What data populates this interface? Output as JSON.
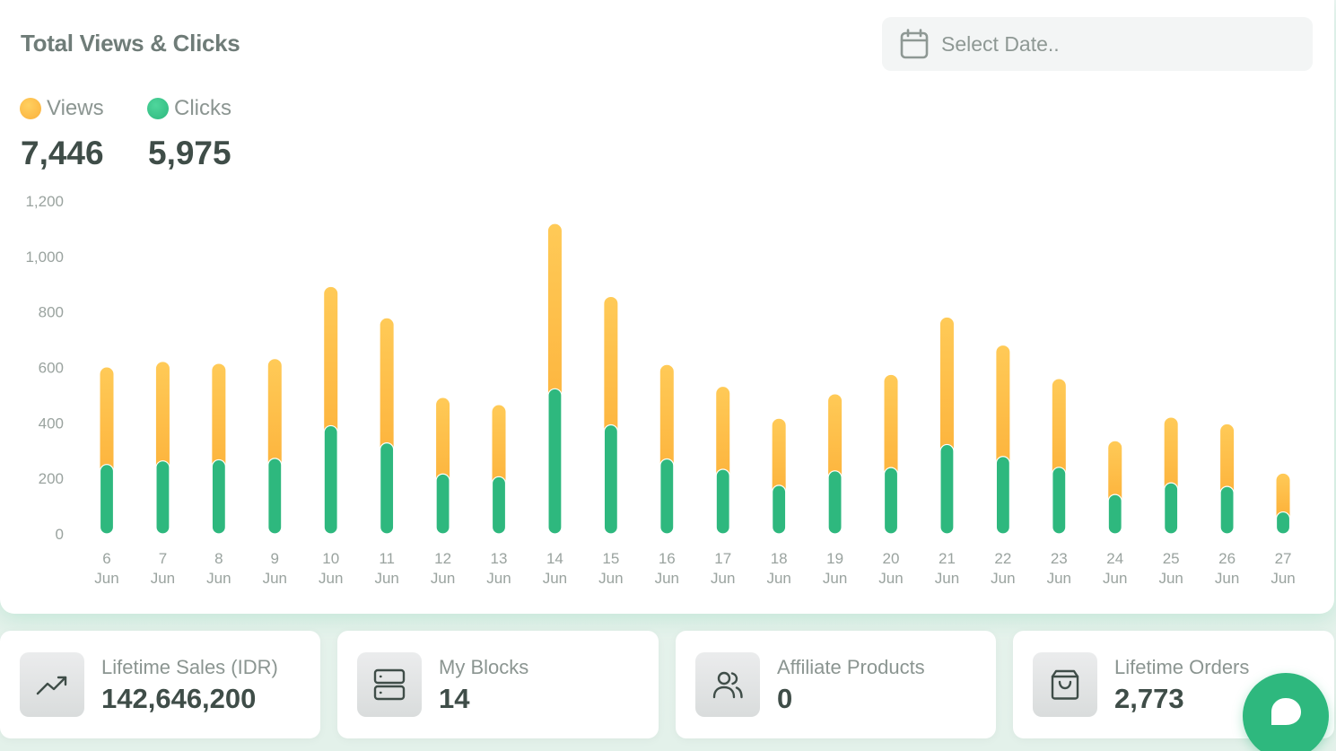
{
  "header": {
    "title": "Total Views & Clicks",
    "date_placeholder": "Select Date.."
  },
  "legend": {
    "views": {
      "label": "Views",
      "total": "7,446",
      "color": "#fbb03b"
    },
    "clicks": {
      "label": "Clicks",
      "total": "5,975",
      "color": "#2eb87e"
    }
  },
  "chart_data": {
    "type": "bar",
    "stacked": true,
    "categories": [
      [
        "6",
        "Jun"
      ],
      [
        "7",
        "Jun"
      ],
      [
        "8",
        "Jun"
      ],
      [
        "9",
        "Jun"
      ],
      [
        "10",
        "Jun"
      ],
      [
        "11",
        "Jun"
      ],
      [
        "12",
        "Jun"
      ],
      [
        "13",
        "Jun"
      ],
      [
        "14",
        "Jun"
      ],
      [
        "15",
        "Jun"
      ],
      [
        "16",
        "Jun"
      ],
      [
        "17",
        "Jun"
      ],
      [
        "18",
        "Jun"
      ],
      [
        "19",
        "Jun"
      ],
      [
        "20",
        "Jun"
      ],
      [
        "21",
        "Jun"
      ],
      [
        "22",
        "Jun"
      ],
      [
        "23",
        "Jun"
      ],
      [
        "24",
        "Jun"
      ],
      [
        "25",
        "Jun"
      ],
      [
        "26",
        "Jun"
      ],
      [
        "27",
        "Jun"
      ]
    ],
    "series": [
      {
        "name": "Clicks",
        "color": "#2eb87e",
        "values": [
          250,
          263,
          267,
          272,
          390,
          328,
          216,
          206,
          523,
          393,
          270,
          233,
          175,
          227,
          239,
          322,
          279,
          240,
          142,
          184,
          171,
          79
        ]
      },
      {
        "name": "Views",
        "color": "#fbb03b",
        "values": [
          350,
          357,
          346,
          358,
          500,
          449,
          274,
          258,
          594,
          461,
          339,
          297,
          240,
          276,
          334,
          458,
          400,
          318,
          192,
          235,
          224,
          138
        ]
      }
    ],
    "y_ticks": [
      "0",
      "200",
      "400",
      "600",
      "800",
      "1,000",
      "1,200"
    ],
    "ylim": [
      0,
      1200
    ],
    "grid": false,
    "legend": "top-left"
  },
  "stats": [
    {
      "label": "Lifetime Sales (IDR)",
      "value": "142,646,200",
      "icon": "trending-up-icon"
    },
    {
      "label": "My Blocks",
      "value": "14",
      "icon": "blocks-server-icon"
    },
    {
      "label": "Affiliate Products",
      "value": "0",
      "icon": "users-icon"
    },
    {
      "label": "Lifetime Orders",
      "value": "2,773",
      "icon": "shopping-bag-icon"
    }
  ],
  "chat": {
    "icon": "chat-bubble-icon",
    "color": "#2eb87e"
  }
}
